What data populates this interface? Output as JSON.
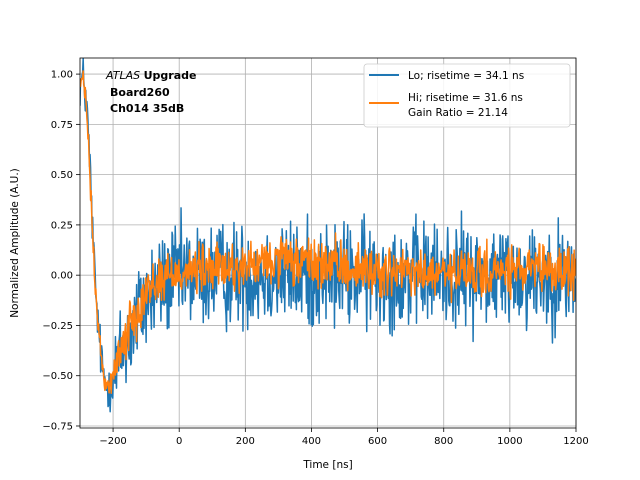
{
  "chart_data": {
    "type": "line",
    "xlabel": "Time [ns]",
    "ylabel": "Normalized Amplitude (A.U.)",
    "xlim": [
      -300,
      1200
    ],
    "ylim": [
      -0.76,
      1.08
    ],
    "xticks": [
      -200,
      0,
      200,
      400,
      600,
      800,
      1000,
      1200
    ],
    "xtick_labels": [
      "−200",
      "0",
      "200",
      "400",
      "600",
      "800",
      "1000",
      "1200"
    ],
    "yticks": [
      -0.75,
      -0.5,
      -0.25,
      0.0,
      0.25,
      0.5,
      0.75,
      1.0
    ],
    "ytick_labels": [
      "−0.75",
      "−0.50",
      "−0.25",
      "0.00",
      "0.25",
      "0.50",
      "0.75",
      "1.00"
    ],
    "grid": true,
    "legend_position": "upper-right",
    "annotation": {
      "italic": "ATLAS",
      "bold": "Upgrade",
      "line2": "Board260",
      "line3": "Ch014 35dB"
    },
    "series": [
      {
        "name": "Lo; risetime = 34.1 ns",
        "color": "#1f77b4",
        "envelope": {
          "x": [
            -300,
            -290,
            -280,
            -270,
            -260,
            -250,
            -240,
            -230,
            -220,
            -210,
            -200,
            -180,
            -150,
            -120,
            -100,
            -60,
            0,
            100,
            200,
            300,
            400,
            600,
            800,
            1000,
            1200
          ],
          "y": [
            0.95,
            0.98,
            0.85,
            0.55,
            0.15,
            -0.15,
            -0.35,
            -0.5,
            -0.55,
            -0.55,
            -0.52,
            -0.42,
            -0.3,
            -0.18,
            -0.12,
            -0.05,
            0.0,
            0.0,
            0.0,
            0.0,
            0.0,
            0.0,
            0.0,
            0.0,
            0.0
          ]
        },
        "noise_amplitude": 0.13
      },
      {
        "name": "Hi; risetime = 31.6 ns\n Gain Ratio = 21.14",
        "color": "#ff7f0e",
        "envelope": {
          "x": [
            -300,
            -290,
            -280,
            -270,
            -260,
            -250,
            -240,
            -230,
            -220,
            -210,
            -200,
            -180,
            -150,
            -120,
            -100,
            -60,
            0,
            100,
            200,
            300,
            400,
            600,
            800,
            1000,
            1200
          ],
          "y": [
            0.95,
            0.97,
            0.83,
            0.5,
            0.12,
            -0.15,
            -0.35,
            -0.48,
            -0.55,
            -0.55,
            -0.5,
            -0.38,
            -0.25,
            -0.14,
            -0.08,
            -0.02,
            0.02,
            0.03,
            0.04,
            0.07,
            0.06,
            0.02,
            0.0,
            0.02,
            0.02
          ]
        },
        "noise_amplitude": 0.06
      }
    ]
  }
}
